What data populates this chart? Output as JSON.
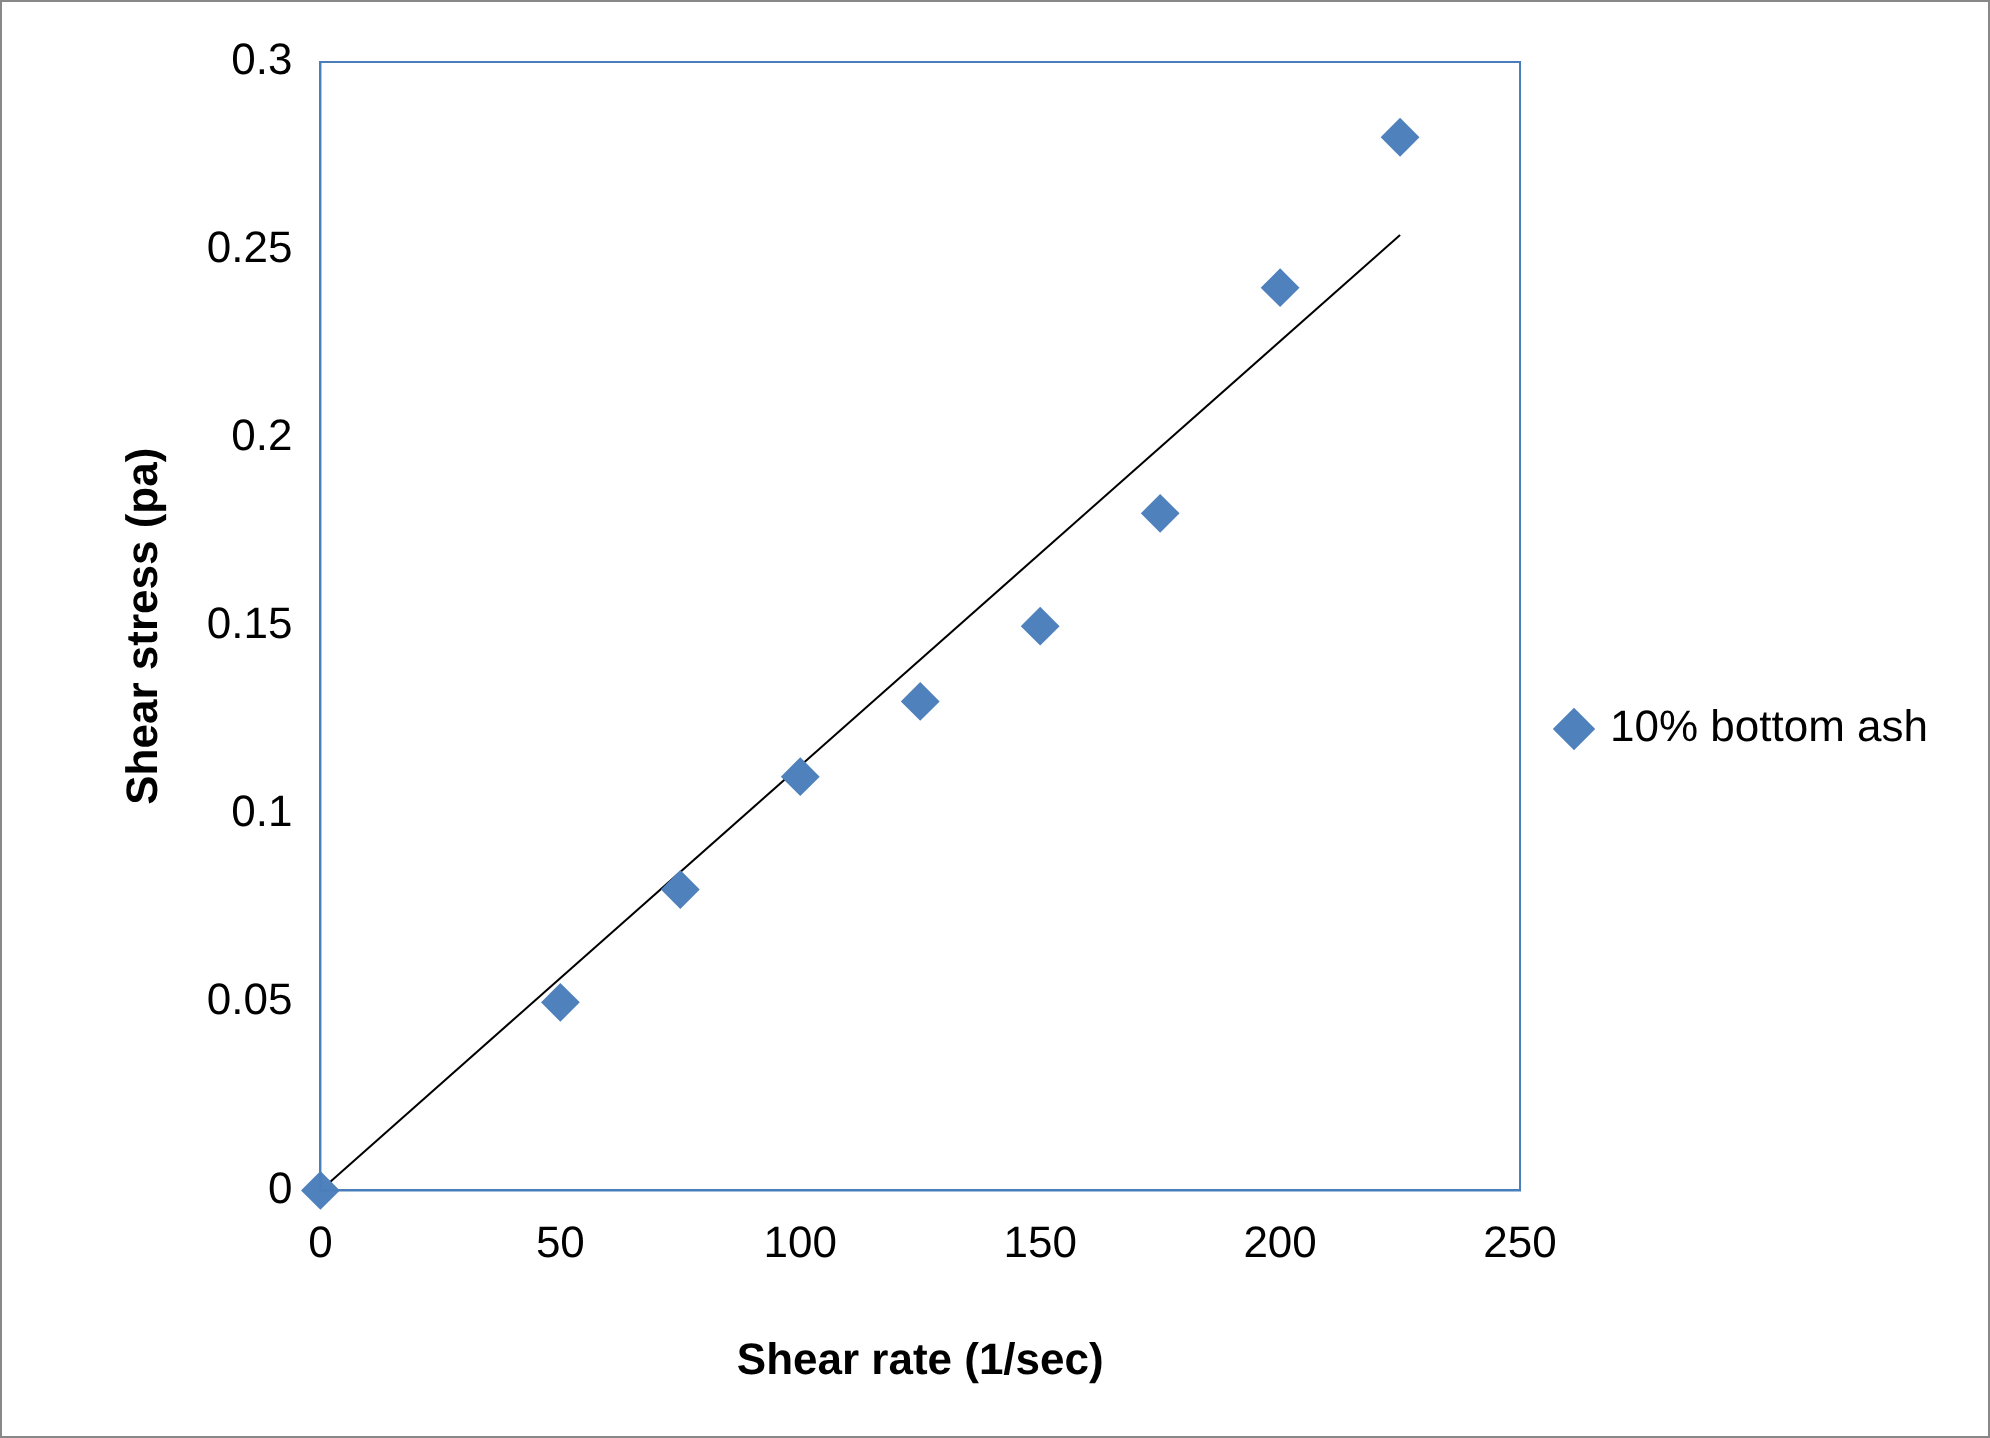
{
  "chart_data": {
    "type": "scatter",
    "xlabel": "Shear rate (1/sec)",
    "ylabel": "Shear stress (pa)",
    "series": [
      {
        "name": "10% bottom ash",
        "color": "#4f81bd",
        "x": [
          0,
          50,
          75,
          100,
          125,
          150,
          175,
          200,
          225
        ],
        "values": [
          0,
          0.05,
          0.08,
          0.11,
          0.13,
          0.15,
          0.18,
          0.24,
          0.28
        ]
      },
      {
        "type": "line",
        "marker": "none",
        "color": "#000000",
        "x": [
          0,
          225
        ],
        "values": [
          0,
          0.254
        ]
      }
    ],
    "xlim": [
      0,
      250
    ],
    "xticks": [
      0,
      50,
      100,
      150,
      200,
      250
    ],
    "ylim": [
      0,
      0.3
    ],
    "yticks": [
      0,
      0.05,
      0.1,
      0.15,
      0.2,
      0.25,
      0.3
    ],
    "grid": false,
    "legend": "right",
    "marker": "diamond",
    "line_style": "solid"
  }
}
